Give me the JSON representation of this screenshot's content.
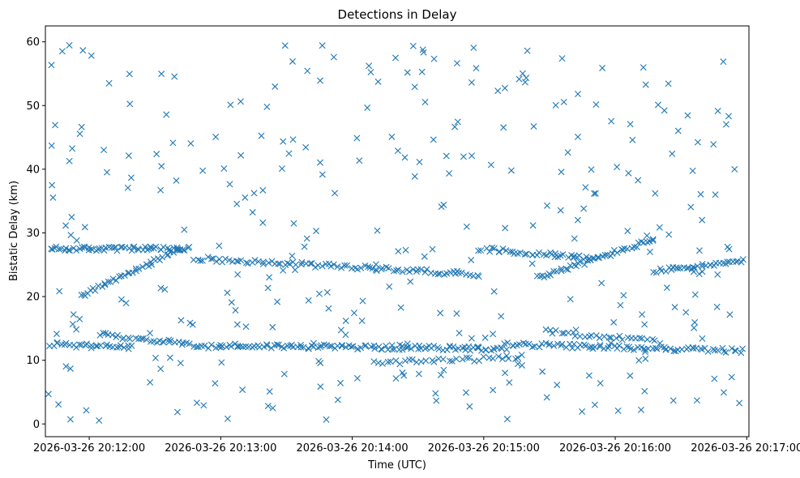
{
  "chart_data": {
    "type": "scatter",
    "title": "Detections in Delay",
    "xlabel": "Time (UTC)",
    "ylabel": "Bistatic Delay (km)",
    "x_unit": "seconds after 2026-03-26 20:12:00",
    "xlim": [
      -20,
      301
    ],
    "ylim": [
      -2,
      62.5
    ],
    "x_ticks": [
      {
        "value": 0,
        "label": "2026-03-26 20:12:00"
      },
      {
        "value": 60,
        "label": "2026-03-26 20:13:00"
      },
      {
        "value": 120,
        "label": "2026-03-26 20:14:00"
      },
      {
        "value": 180,
        "label": "2026-03-26 20:15:00"
      },
      {
        "value": 240,
        "label": "2026-03-26 20:16:00"
      },
      {
        "value": 300,
        "label": "2026-03-26 20:17:00"
      }
    ],
    "y_ticks": [
      0,
      10,
      20,
      30,
      40,
      50,
      60
    ],
    "marker": "x",
    "color": "#1f77b4",
    "grid": false,
    "tracks": [
      {
        "name": "track-near-27-km",
        "x_range": [
          -18,
          46
        ],
        "y_start": 27.5,
        "y_end": 27.5,
        "count": 60
      },
      {
        "name": "track-rising-20-to-27-km",
        "x_range": [
          -4,
          42
        ],
        "y_start": 20.0,
        "y_end": 27.5,
        "count": 40
      },
      {
        "name": "track-26-to-23-km",
        "x_range": [
          48,
          178
        ],
        "y_start": 26.0,
        "y_end": 23.5,
        "count": 90
      },
      {
        "name": "track-near-27-km-mid",
        "x_range": [
          178,
          232
        ],
        "y_start": 27.5,
        "y_end": 26.0,
        "count": 40
      },
      {
        "name": "track-rising-23-to-29-km",
        "x_range": [
          205,
          258
        ],
        "y_start": 23.0,
        "y_end": 29.0,
        "count": 45
      },
      {
        "name": "track-near-24-km-late",
        "x_range": [
          258,
          298
        ],
        "y_start": 24.0,
        "y_end": 25.5,
        "count": 35
      },
      {
        "name": "track-near-12-km-early",
        "x_range": [
          -18,
          20
        ],
        "y_start": 12.5,
        "y_end": 12.0,
        "count": 30
      },
      {
        "name": "track-14-to-12-km",
        "x_range": [
          5,
          60
        ],
        "y_start": 14.0,
        "y_end": 12.0,
        "count": 40
      },
      {
        "name": "track-near-12-km",
        "x_range": [
          60,
          190
        ],
        "y_start": 12.3,
        "y_end": 11.8,
        "count": 110
      },
      {
        "name": "track-near-12-km-late",
        "x_range": [
          190,
          298
        ],
        "y_start": 12.5,
        "y_end": 11.5,
        "count": 80
      },
      {
        "name": "track-14-km-late",
        "x_range": [
          208,
          260
        ],
        "y_start": 14.5,
        "y_end": 13.0,
        "count": 30
      },
      {
        "name": "track-near-10-km",
        "x_range": [
          130,
          198
        ],
        "y_start": 9.5,
        "y_end": 10.5,
        "count": 35
      }
    ],
    "scattered_detections": {
      "count": 330,
      "x_range": [
        -20,
        298
      ],
      "y_range": [
        0.5,
        59.5
      ]
    }
  }
}
